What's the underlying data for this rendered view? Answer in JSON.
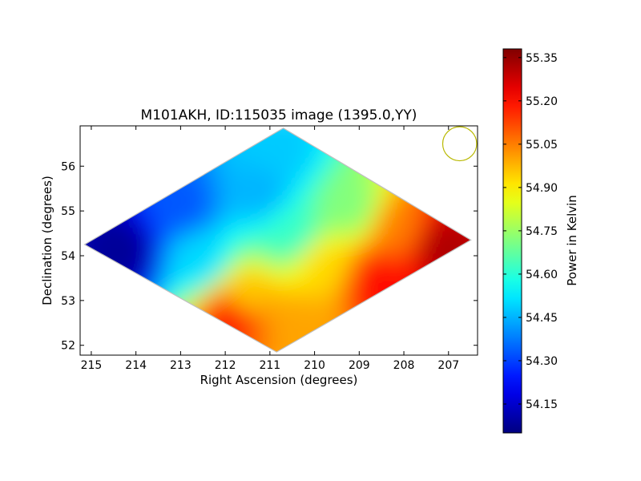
{
  "chart_data": {
    "type": "heatmap",
    "title": "M101AKH, ID:115035 image (1395.0,YY)",
    "xlabel": "Right Ascension (degrees)",
    "ylabel": "Declination (degrees)",
    "xlim": [
      215.25,
      206.35
    ],
    "ylim": [
      51.78,
      56.9
    ],
    "x_ticks": [
      "215",
      "214",
      "213",
      "212",
      "211",
      "210",
      "209",
      "208",
      "207"
    ],
    "x_tick_values": [
      215,
      214,
      213,
      212,
      211,
      210,
      209,
      208,
      207
    ],
    "y_ticks": [
      "52",
      "53",
      "54",
      "55",
      "56"
    ],
    "y_tick_values": [
      52,
      53,
      54,
      55,
      56
    ],
    "footprint": {
      "shape": "diamond",
      "vertices": [
        [
          215.15,
          54.25
        ],
        [
          210.7,
          56.85
        ],
        [
          206.5,
          54.35
        ],
        [
          210.85,
          51.85
        ]
      ]
    },
    "beam": {
      "ra": 206.75,
      "dec": 56.5,
      "radius_deg": 0.38,
      "color": "#b8b800"
    },
    "field_samples": [
      {
        "ra": 214.3,
        "dec": 54.1,
        "value": 54.08
      },
      {
        "ra": 213.0,
        "dec": 55.1,
        "value": 54.33
      },
      {
        "ra": 210.7,
        "dec": 56.3,
        "value": 54.48
      },
      {
        "ra": 211.2,
        "dec": 55.4,
        "value": 54.45
      },
      {
        "ra": 212.6,
        "dec": 53.9,
        "value": 54.5
      },
      {
        "ra": 210.5,
        "dec": 54.5,
        "value": 54.62
      },
      {
        "ra": 209.2,
        "dec": 55.1,
        "value": 54.72
      },
      {
        "ra": 211.6,
        "dec": 53.0,
        "value": 54.95
      },
      {
        "ra": 209.8,
        "dec": 53.8,
        "value": 54.93
      },
      {
        "ra": 211.8,
        "dec": 52.7,
        "value": 55.2
      },
      {
        "ra": 208.1,
        "dec": 54.6,
        "value": 55.05
      },
      {
        "ra": 210.3,
        "dec": 52.4,
        "value": 55.0
      },
      {
        "ra": 207.2,
        "dec": 54.2,
        "value": 55.32
      },
      {
        "ra": 208.6,
        "dec": 53.4,
        "value": 55.2
      }
    ],
    "colorbar": {
      "label": "Power in Kelvin",
      "min": 54.05,
      "max": 55.38,
      "colormap": "jet",
      "ticks": [
        "54.15",
        "54.30",
        "54.45",
        "54.60",
        "54.75",
        "54.90",
        "55.05",
        "55.20",
        "55.35"
      ],
      "tick_values": [
        54.15,
        54.3,
        54.45,
        54.6,
        54.75,
        54.9,
        55.05,
        55.2,
        55.35
      ]
    }
  }
}
